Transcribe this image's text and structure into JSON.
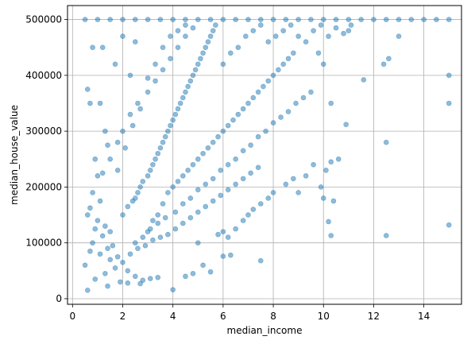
{
  "chart_data": {
    "type": "scatter",
    "title": "",
    "xlabel": "median_income",
    "ylabel": "median_house_value",
    "xlim": [
      -0.2,
      15.5
    ],
    "ylim": [
      -10000,
      525000
    ],
    "xticks": [
      0,
      2,
      4,
      6,
      8,
      10,
      12,
      14
    ],
    "yticks": [
      0,
      100000,
      200000,
      300000,
      400000,
      500000
    ],
    "xtick_labels": [
      "0",
      "2",
      "4",
      "6",
      "8",
      "10",
      "12",
      "14"
    ],
    "ytick_labels": [
      "0",
      "100000",
      "200000",
      "300000",
      "400000",
      "500000"
    ],
    "grid": true,
    "marker_color": "#1f77b4",
    "marker_alpha": 0.5,
    "series": [
      {
        "points": [
          [
            0.5,
            500001
          ],
          [
            1.0,
            500001
          ],
          [
            1.5,
            500001
          ],
          [
            2.0,
            500001
          ],
          [
            2.5,
            500001
          ],
          [
            3.0,
            500001
          ],
          [
            3.5,
            500001
          ],
          [
            4.0,
            500001
          ],
          [
            4.5,
            500001
          ],
          [
            5.0,
            500001
          ],
          [
            5.5,
            500001
          ],
          [
            6.0,
            500001
          ],
          [
            6.5,
            500001
          ],
          [
            7.0,
            500001
          ],
          [
            7.5,
            500001
          ],
          [
            8.0,
            500001
          ],
          [
            8.5,
            500001
          ],
          [
            9.0,
            500001
          ],
          [
            9.5,
            500001
          ],
          [
            10.0,
            500001
          ],
          [
            10.5,
            500001
          ],
          [
            11.0,
            500001
          ],
          [
            11.5,
            500001
          ],
          [
            12.0,
            500001
          ],
          [
            12.5,
            500001
          ],
          [
            13.0,
            500001
          ],
          [
            13.5,
            500001
          ],
          [
            14.0,
            500001
          ],
          [
            14.5,
            500001
          ],
          [
            15.0,
            500001
          ],
          [
            0.6,
            375000
          ],
          [
            0.7,
            350000
          ],
          [
            1.1,
            350000
          ],
          [
            1.3,
            300000
          ],
          [
            1.4,
            275000
          ],
          [
            0.9,
            250000
          ],
          [
            1.2,
            225000
          ],
          [
            0.8,
            190000
          ],
          [
            1.1,
            175000
          ],
          [
            0.7,
            162500
          ],
          [
            0.6,
            150000
          ],
          [
            1.0,
            140000
          ],
          [
            1.3,
            130000
          ],
          [
            0.9,
            125000
          ],
          [
            1.5,
            120000
          ],
          [
            1.2,
            112500
          ],
          [
            0.8,
            100000
          ],
          [
            1.6,
            95000
          ],
          [
            1.4,
            90000
          ],
          [
            0.7,
            85000
          ],
          [
            1.1,
            80000
          ],
          [
            1.8,
            75000
          ],
          [
            1.5,
            70000
          ],
          [
            2.0,
            65000
          ],
          [
            0.5,
            60000
          ],
          [
            1.7,
            55000
          ],
          [
            2.2,
            50000
          ],
          [
            1.3,
            45000
          ],
          [
            2.5,
            40000
          ],
          [
            0.9,
            35000
          ],
          [
            1.9,
            30000
          ],
          [
            2.7,
            27000
          ],
          [
            1.4,
            22500
          ],
          [
            0.6,
            15000
          ],
          [
            3.1,
            36000
          ],
          [
            4.0,
            16000
          ],
          [
            0.8,
            450000
          ],
          [
            1.2,
            450000
          ],
          [
            2.0,
            470000
          ],
          [
            2.5,
            460000
          ],
          [
            1.7,
            420000
          ],
          [
            2.3,
            400000
          ],
          [
            2.0,
            150000
          ],
          [
            2.2,
            165000
          ],
          [
            2.4,
            175000
          ],
          [
            2.5,
            180000
          ],
          [
            2.6,
            190000
          ],
          [
            2.7,
            200000
          ],
          [
            2.8,
            210000
          ],
          [
            3.0,
            220000
          ],
          [
            3.1,
            230000
          ],
          [
            3.2,
            240000
          ],
          [
            3.3,
            250000
          ],
          [
            3.4,
            260000
          ],
          [
            3.5,
            270000
          ],
          [
            3.6,
            280000
          ],
          [
            3.7,
            290000
          ],
          [
            3.8,
            300000
          ],
          [
            3.9,
            310000
          ],
          [
            4.0,
            320000
          ],
          [
            4.1,
            330000
          ],
          [
            4.2,
            340000
          ],
          [
            4.3,
            350000
          ],
          [
            4.4,
            360000
          ],
          [
            4.5,
            370000
          ],
          [
            4.6,
            380000
          ],
          [
            4.7,
            390000
          ],
          [
            4.8,
            400000
          ],
          [
            4.9,
            410000
          ],
          [
            5.0,
            420000
          ],
          [
            5.1,
            430000
          ],
          [
            5.2,
            440000
          ],
          [
            5.3,
            450000
          ],
          [
            5.4,
            460000
          ],
          [
            5.5,
            470000
          ],
          [
            5.6,
            480000
          ],
          [
            5.7,
            490000
          ],
          [
            3.0,
            120000
          ],
          [
            3.2,
            140000
          ],
          [
            3.4,
            150000
          ],
          [
            3.6,
            170000
          ],
          [
            3.8,
            190000
          ],
          [
            4.0,
            200000
          ],
          [
            4.2,
            210000
          ],
          [
            4.4,
            220000
          ],
          [
            4.6,
            230000
          ],
          [
            4.8,
            240000
          ],
          [
            5.0,
            250000
          ],
          [
            5.2,
            260000
          ],
          [
            5.4,
            270000
          ],
          [
            5.6,
            280000
          ],
          [
            5.8,
            290000
          ],
          [
            6.0,
            300000
          ],
          [
            6.2,
            310000
          ],
          [
            6.4,
            320000
          ],
          [
            6.6,
            330000
          ],
          [
            6.8,
            340000
          ],
          [
            7.0,
            350000
          ],
          [
            7.2,
            360000
          ],
          [
            7.4,
            370000
          ],
          [
            7.6,
            380000
          ],
          [
            7.8,
            390000
          ],
          [
            8.0,
            400000
          ],
          [
            8.2,
            410000
          ],
          [
            8.4,
            420000
          ],
          [
            8.6,
            430000
          ],
          [
            8.8,
            440000
          ],
          [
            2.5,
            100000
          ],
          [
            2.8,
            110000
          ],
          [
            3.1,
            125000
          ],
          [
            3.4,
            135000
          ],
          [
            3.7,
            145000
          ],
          [
            4.1,
            155000
          ],
          [
            4.4,
            170000
          ],
          [
            4.7,
            180000
          ],
          [
            5.0,
            195000
          ],
          [
            5.3,
            205000
          ],
          [
            5.6,
            215000
          ],
          [
            5.9,
            230000
          ],
          [
            6.2,
            240000
          ],
          [
            6.5,
            250000
          ],
          [
            6.8,
            265000
          ],
          [
            7.1,
            275000
          ],
          [
            7.4,
            290000
          ],
          [
            7.7,
            300000
          ],
          [
            8.0,
            315000
          ],
          [
            8.3,
            325000
          ],
          [
            8.6,
            335000
          ],
          [
            8.9,
            350000
          ],
          [
            9.2,
            360000
          ],
          [
            9.5,
            370000
          ],
          [
            2.3,
            80000
          ],
          [
            2.6,
            90000
          ],
          [
            2.9,
            95000
          ],
          [
            3.2,
            105000
          ],
          [
            3.5,
            110000
          ],
          [
            3.8,
            115000
          ],
          [
            4.1,
            125000
          ],
          [
            4.4,
            135000
          ],
          [
            4.7,
            145000
          ],
          [
            5.0,
            155000
          ],
          [
            5.3,
            165000
          ],
          [
            5.6,
            175000
          ],
          [
            5.9,
            185000
          ],
          [
            6.2,
            195000
          ],
          [
            6.5,
            205000
          ],
          [
            6.8,
            215000
          ],
          [
            7.1,
            225000
          ],
          [
            7.4,
            235000
          ],
          [
            6.0,
            120000
          ],
          [
            6.2,
            110000
          ],
          [
            6.5,
            125000
          ],
          [
            6.8,
            140000
          ],
          [
            7.0,
            150000
          ],
          [
            7.2,
            160000
          ],
          [
            7.5,
            170000
          ],
          [
            7.8,
            180000
          ],
          [
            8.0,
            190000
          ],
          [
            8.5,
            205000
          ],
          [
            8.8,
            215000
          ],
          [
            9.0,
            190000
          ],
          [
            9.3,
            220000
          ],
          [
            9.6,
            240000
          ],
          [
            9.9,
            200000
          ],
          [
            10.1,
            230000
          ],
          [
            10.3,
            245000
          ],
          [
            10.6,
            250000
          ],
          [
            10.0,
            180000
          ],
          [
            10.4,
            175000
          ],
          [
            10.2,
            138000
          ],
          [
            10.3,
            113000
          ],
          [
            12.5,
            113000
          ],
          [
            15.0,
            132000
          ],
          [
            12.5,
            280000
          ],
          [
            15.0,
            350000
          ],
          [
            15.0,
            400000
          ],
          [
            12.4,
            420000
          ],
          [
            12.6,
            430000
          ],
          [
            11.6,
            392000
          ],
          [
            10.9,
            312000
          ],
          [
            10.3,
            350000
          ],
          [
            10.0,
            420000
          ],
          [
            9.8,
            440000
          ],
          [
            11.0,
            480000
          ],
          [
            13.0,
            470000
          ],
          [
            7.5,
            68000
          ],
          [
            6.3,
            78000
          ],
          [
            5.5,
            48000
          ],
          [
            6.0,
            76000
          ],
          [
            5.0,
            100000
          ],
          [
            5.8,
            115000
          ],
          [
            5.2,
            60000
          ],
          [
            4.8,
            45000
          ],
          [
            4.5,
            40000
          ],
          [
            3.4,
            38000
          ],
          [
            2.8,
            33000
          ],
          [
            2.2,
            28000
          ],
          [
            2.0,
            300000
          ],
          [
            1.8,
            280000
          ],
          [
            2.3,
            330000
          ],
          [
            2.6,
            350000
          ],
          [
            3.0,
            370000
          ],
          [
            3.3,
            390000
          ],
          [
            3.6,
            410000
          ],
          [
            3.9,
            430000
          ],
          [
            4.2,
            450000
          ],
          [
            4.5,
            470000
          ],
          [
            4.8,
            485000
          ],
          [
            1.0,
            220000
          ],
          [
            1.5,
            250000
          ],
          [
            1.8,
            230000
          ],
          [
            2.1,
            270000
          ],
          [
            2.4,
            310000
          ],
          [
            2.7,
            340000
          ],
          [
            3.0,
            395000
          ],
          [
            3.3,
            420000
          ],
          [
            3.6,
            450000
          ],
          [
            3.9,
            470000
          ],
          [
            4.2,
            480000
          ],
          [
            4.5,
            490000
          ],
          [
            6.0,
            420000
          ],
          [
            6.3,
            440000
          ],
          [
            6.6,
            450000
          ],
          [
            6.9,
            470000
          ],
          [
            7.2,
            480000
          ],
          [
            7.5,
            490000
          ],
          [
            7.8,
            460000
          ],
          [
            8.1,
            470000
          ],
          [
            8.4,
            480000
          ],
          [
            8.7,
            490000
          ],
          [
            9.0,
            470000
          ],
          [
            9.3,
            460000
          ],
          [
            9.6,
            480000
          ],
          [
            9.9,
            490000
          ],
          [
            10.2,
            470000
          ],
          [
            10.5,
            485000
          ],
          [
            10.8,
            475000
          ],
          [
            11.1,
            490000
          ]
        ]
      }
    ]
  }
}
